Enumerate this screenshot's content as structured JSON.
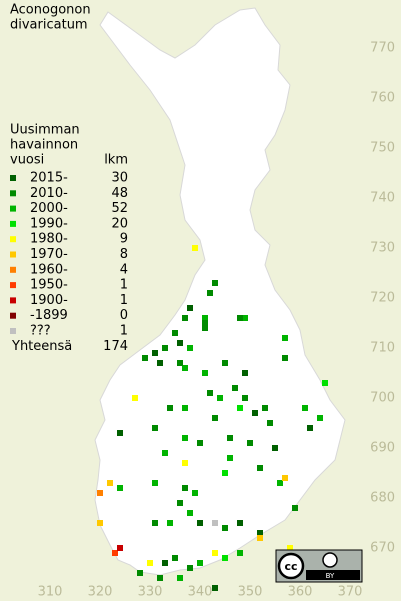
{
  "title": [
    "Aconogonon",
    "divaricatum"
  ],
  "legend": {
    "header": [
      "Uusimman",
      "havainnon",
      "vuosi"
    ],
    "count_header": "lkm",
    "rows": [
      {
        "label": "2015-",
        "count": 30,
        "color": "#006000"
      },
      {
        "label": "2010-",
        "count": 48,
        "color": "#008a00"
      },
      {
        "label": "2000-",
        "count": 52,
        "color": "#00b400"
      },
      {
        "label": "1990-",
        "count": 20,
        "color": "#00e000"
      },
      {
        "label": "1980-",
        "count": 9,
        "color": "#ffff00"
      },
      {
        "label": "1970-",
        "count": 8,
        "color": "#ffc800"
      },
      {
        "label": "1960-",
        "count": 4,
        "color": "#ff8000"
      },
      {
        "label": "1950-",
        "count": 1,
        "color": "#ff3c00"
      },
      {
        "label": "1900-",
        "count": 1,
        "color": "#c80000"
      },
      {
        "label": "-1899",
        "count": 0,
        "color": "#800000"
      },
      {
        "label": "???",
        "count": 1,
        "color": "#c0c0c0"
      }
    ],
    "total_label": "Yhteensä",
    "total": 174
  },
  "xticks": [
    310,
    320,
    330,
    340,
    350,
    360,
    370
  ],
  "yticks": [
    770,
    760,
    750,
    740,
    730,
    720,
    710,
    700,
    690,
    680,
    670
  ],
  "license_badge": [
    "cc",
    "BY"
  ],
  "observations": [
    [
      339,
      730,
      4
    ],
    [
      343,
      723,
      1
    ],
    [
      342,
      721,
      1
    ],
    [
      341,
      716,
      2
    ],
    [
      338,
      718,
      0
    ],
    [
      337,
      716,
      1
    ],
    [
      341,
      715,
      1
    ],
    [
      349,
      716,
      2
    ],
    [
      348,
      716,
      1
    ],
    [
      335,
      713,
      1
    ],
    [
      336,
      711,
      0
    ],
    [
      338,
      710,
      2
    ],
    [
      341,
      714,
      1
    ],
    [
      331,
      709,
      0
    ],
    [
      333,
      710,
      1
    ],
    [
      329,
      708,
      1
    ],
    [
      332,
      707,
      0
    ],
    [
      337,
      706,
      2
    ],
    [
      336,
      707,
      1
    ],
    [
      357,
      712,
      2
    ],
    [
      357,
      708,
      1
    ],
    [
      345,
      707,
      1
    ],
    [
      349,
      705,
      0
    ],
    [
      347,
      702,
      1
    ],
    [
      341,
      705,
      2
    ],
    [
      342,
      701,
      1
    ],
    [
      344,
      700,
      2
    ],
    [
      349,
      700,
      1
    ],
    [
      351,
      697,
      0
    ],
    [
      353,
      698,
      1
    ],
    [
      365,
      703,
      3
    ],
    [
      361,
      698,
      2
    ],
    [
      364,
      696,
      2
    ],
    [
      362,
      694,
      0
    ],
    [
      354,
      695,
      1
    ],
    [
      348,
      698,
      3
    ],
    [
      343,
      696,
      1
    ],
    [
      337,
      698,
      2
    ],
    [
      334,
      698,
      1
    ],
    [
      331,
      694,
      1
    ],
    [
      324,
      693,
      0
    ],
    [
      337,
      692,
      2
    ],
    [
      340,
      691,
      1
    ],
    [
      346,
      692,
      1
    ],
    [
      350,
      691,
      1
    ],
    [
      355,
      690,
      0
    ],
    [
      333,
      689,
      2
    ],
    [
      337,
      687,
      4
    ],
    [
      345,
      685,
      3
    ],
    [
      346,
      688,
      2
    ],
    [
      352,
      686,
      1
    ],
    [
      356,
      683,
      2
    ],
    [
      357,
      684,
      5
    ],
    [
      322,
      683,
      5
    ],
    [
      324,
      682,
      2
    ],
    [
      331,
      683,
      2
    ],
    [
      337,
      682,
      1
    ],
    [
      339,
      681,
      2
    ],
    [
      336,
      679,
      1
    ],
    [
      338,
      677,
      2
    ],
    [
      334,
      675,
      2
    ],
    [
      331,
      675,
      1
    ],
    [
      340,
      675,
      0
    ],
    [
      345,
      674,
      1
    ],
    [
      348,
      675,
      0
    ],
    [
      352,
      673,
      0
    ],
    [
      359,
      678,
      1
    ],
    [
      352,
      672,
      5
    ],
    [
      358,
      670,
      4
    ],
    [
      320,
      681,
      6
    ],
    [
      320,
      675,
      5
    ],
    [
      323,
      669,
      7
    ],
    [
      324,
      670,
      8
    ],
    [
      333,
      667,
      0
    ],
    [
      335,
      668,
      1
    ],
    [
      330,
      667,
      4
    ],
    [
      328,
      665,
      1
    ],
    [
      332,
      664,
      1
    ],
    [
      340,
      667,
      2
    ],
    [
      343,
      669,
      4
    ],
    [
      345,
      668,
      3
    ],
    [
      348,
      669,
      2
    ],
    [
      356,
      668,
      2
    ],
    [
      343,
      662,
      0
    ],
    [
      338,
      666,
      1
    ],
    [
      336,
      664,
      2
    ],
    [
      343,
      675,
      10
    ],
    [
      327,
      700,
      4
    ]
  ]
}
